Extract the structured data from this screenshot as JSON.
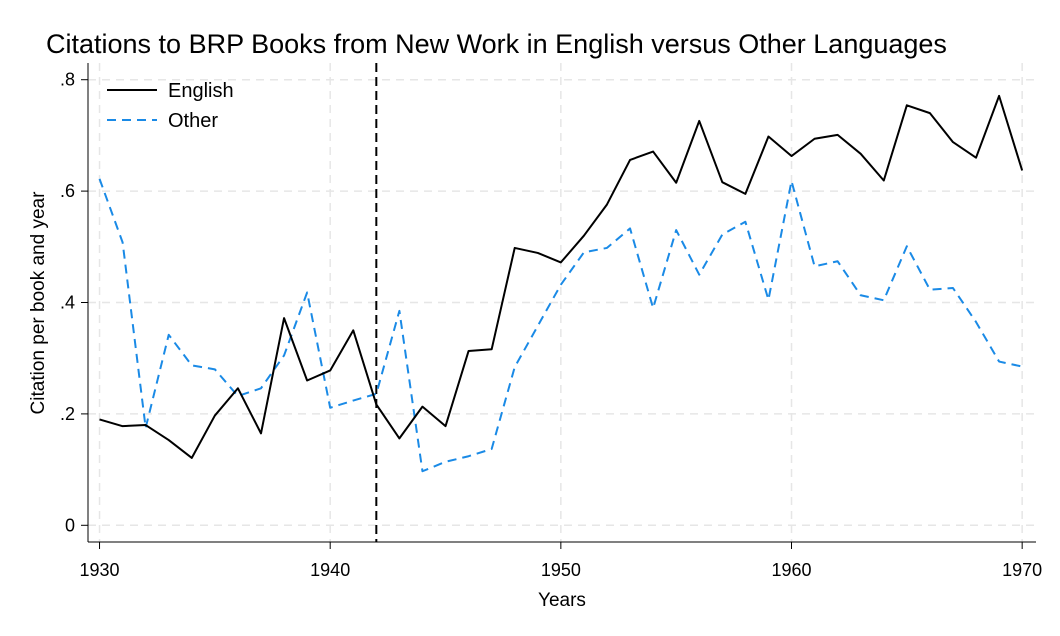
{
  "chart_data": {
    "type": "line",
    "title": "Citations to BRP Books from New Work in English versus Other Languages",
    "xlabel": "Years",
    "ylabel": "Citation per book and year",
    "xlim": [
      1929.5,
      1970.6
    ],
    "ylim": [
      -0.03,
      0.83
    ],
    "x_ticks": [
      1930,
      1940,
      1950,
      1960,
      1970
    ],
    "y_ticks": [
      0,
      0.2,
      0.4,
      0.6,
      0.8
    ],
    "y_tick_labels": [
      "0",
      ".2",
      ".4",
      ".6",
      ".8"
    ],
    "grid": true,
    "legend_position": "top-left",
    "reference_line": {
      "x": 1942,
      "style": "dashed",
      "color": "#000000"
    },
    "x": [
      1930,
      1931,
      1932,
      1933,
      1934,
      1935,
      1936,
      1937,
      1938,
      1939,
      1940,
      1941,
      1942,
      1943,
      1944,
      1945,
      1946,
      1947,
      1948,
      1949,
      1950,
      1951,
      1952,
      1953,
      1954,
      1955,
      1956,
      1957,
      1958,
      1959,
      1960,
      1961,
      1962,
      1963,
      1964,
      1965,
      1966,
      1967,
      1968,
      1969,
      1970
    ],
    "series": [
      {
        "name": "English",
        "color": "#000000",
        "dash": "solid",
        "values": [
          0.19,
          0.178,
          0.18,
          0.153,
          0.121,
          0.197,
          0.246,
          0.165,
          0.372,
          0.26,
          0.278,
          0.35,
          0.217,
          0.156,
          0.213,
          0.178,
          0.313,
          0.316,
          0.498,
          0.489,
          0.472,
          0.52,
          0.576,
          0.656,
          0.671,
          0.615,
          0.726,
          0.616,
          0.595,
          0.698,
          0.663,
          0.694,
          0.701,
          0.667,
          0.619,
          0.754,
          0.74,
          0.688,
          0.66,
          0.771,
          0.637
        ]
      },
      {
        "name": "Other",
        "color": "#1a8ae6",
        "dash": "dashed",
        "values": [
          0.622,
          0.508,
          0.175,
          0.342,
          0.287,
          0.28,
          0.232,
          0.246,
          0.305,
          0.418,
          0.211,
          0.224,
          0.236,
          0.385,
          0.097,
          0.114,
          0.124,
          0.137,
          0.284,
          0.358,
          0.432,
          0.49,
          0.498,
          0.533,
          0.39,
          0.53,
          0.45,
          0.522,
          0.545,
          0.405,
          0.618,
          0.465,
          0.474,
          0.413,
          0.404,
          0.501,
          0.423,
          0.426,
          0.365,
          0.294,
          0.285
        ]
      }
    ]
  }
}
